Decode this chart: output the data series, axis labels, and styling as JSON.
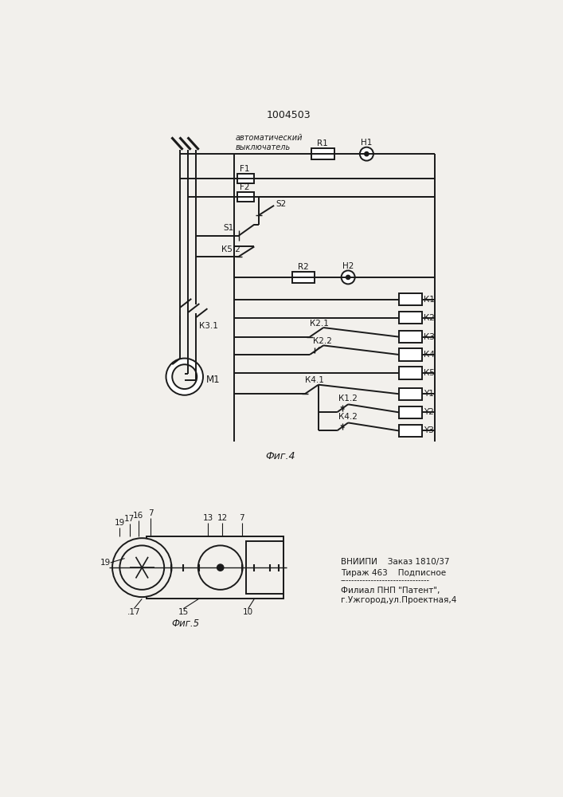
{
  "title": "1004503",
  "fig4_label": "Фиг.4",
  "fig5_label": "Фиг.5",
  "bg_color": "#f2f0ec",
  "line_color": "#1a1a1a",
  "font_color": "#1a1a1a",
  "vniipi_line1": "ВНИИПИ    Заказ 1810/37",
  "vniipi_line2": "Тираж 463    Подписное",
  "vniipi_sep": "--------------------------------",
  "vniipi_line3": "Филиал ПНП \"Патент\",",
  "vniipi_line4": "г.Ужгород,ул.Проектная,4",
  "auto_label": "автоматический\nвыключатель"
}
